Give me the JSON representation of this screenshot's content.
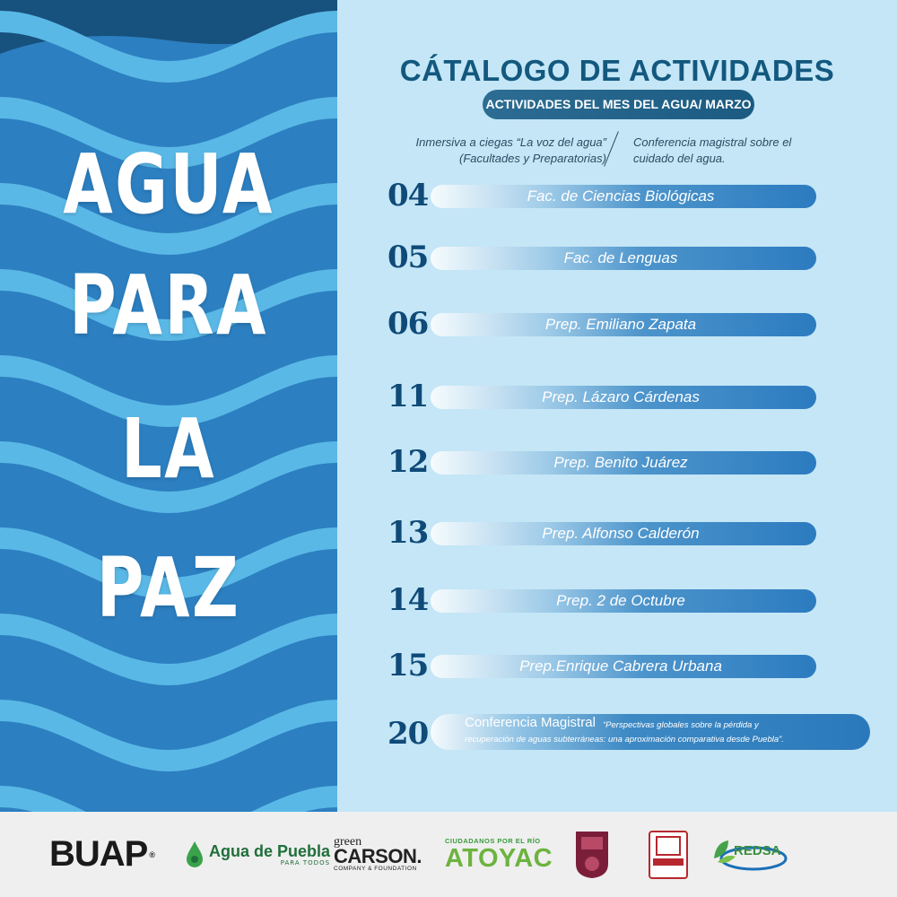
{
  "hero": {
    "line1": "AGUA",
    "line2": "PARA",
    "line3": "LA",
    "line4": "PAZ"
  },
  "catalog": {
    "title": "CÁTALOGO DE ACTIVIDADES",
    "subtitle": "ACTIVIDADES DEL MES DEL AGUA/ MARZO",
    "intro_left_line1": "Inmersiva a ciegas “La voz del agua”",
    "intro_left_line2": "(Facultades y Preparatorias)",
    "intro_right_line1": "Conferencia magistral sobre el",
    "intro_right_line2": "cuidado del agua."
  },
  "activities": [
    {
      "day": "04",
      "label": "Fac. de Ciencias Biológicas"
    },
    {
      "day": "05",
      "label": "Fac. de Lenguas"
    },
    {
      "day": "06",
      "label": "Prep. Emiliano Zapata"
    },
    {
      "day": "11",
      "label": "Prep. Lázaro Cárdenas"
    },
    {
      "day": "12",
      "label": "Prep. Benito Juárez"
    },
    {
      "day": "13",
      "label": "Prep. Alfonso Calderón"
    },
    {
      "day": "14",
      "label": "Prep. 2 de Octubre"
    },
    {
      "day": "15",
      "label": "Prep.Enrique Cabrera Urbana"
    }
  ],
  "conference": {
    "day": "20",
    "title": "Conferencia Magistral",
    "quote_line1": "“Perspectivas globales sobre la pérdida y",
    "quote_line2": "recuperación de aguas subterráneas: una  aproximación comparativa desde Puebla”."
  },
  "footer": {
    "buap": "BUAP",
    "buap_mark": "®",
    "agua_puebla": "Agua de Puebla",
    "agua_puebla_sub": "PARA TODOS",
    "carson_top": "green",
    "carson_name": "CARSON.",
    "carson_sub": "COMPANY & FOUNDATION",
    "atoyac_top": "CIUDADANOS POR EL RÍO",
    "atoyac_name": "ATOYAC",
    "ipn": "IPN",
    "anuies": "ANUIES",
    "redsa": "REDSA"
  },
  "colors": {
    "wave_dark": "#2c7fc0",
    "wave_light": "#5ab8e6",
    "panel_bg": "#c4e6f6",
    "title_blue": "#13587e",
    "day_blue": "#0f4a78"
  }
}
